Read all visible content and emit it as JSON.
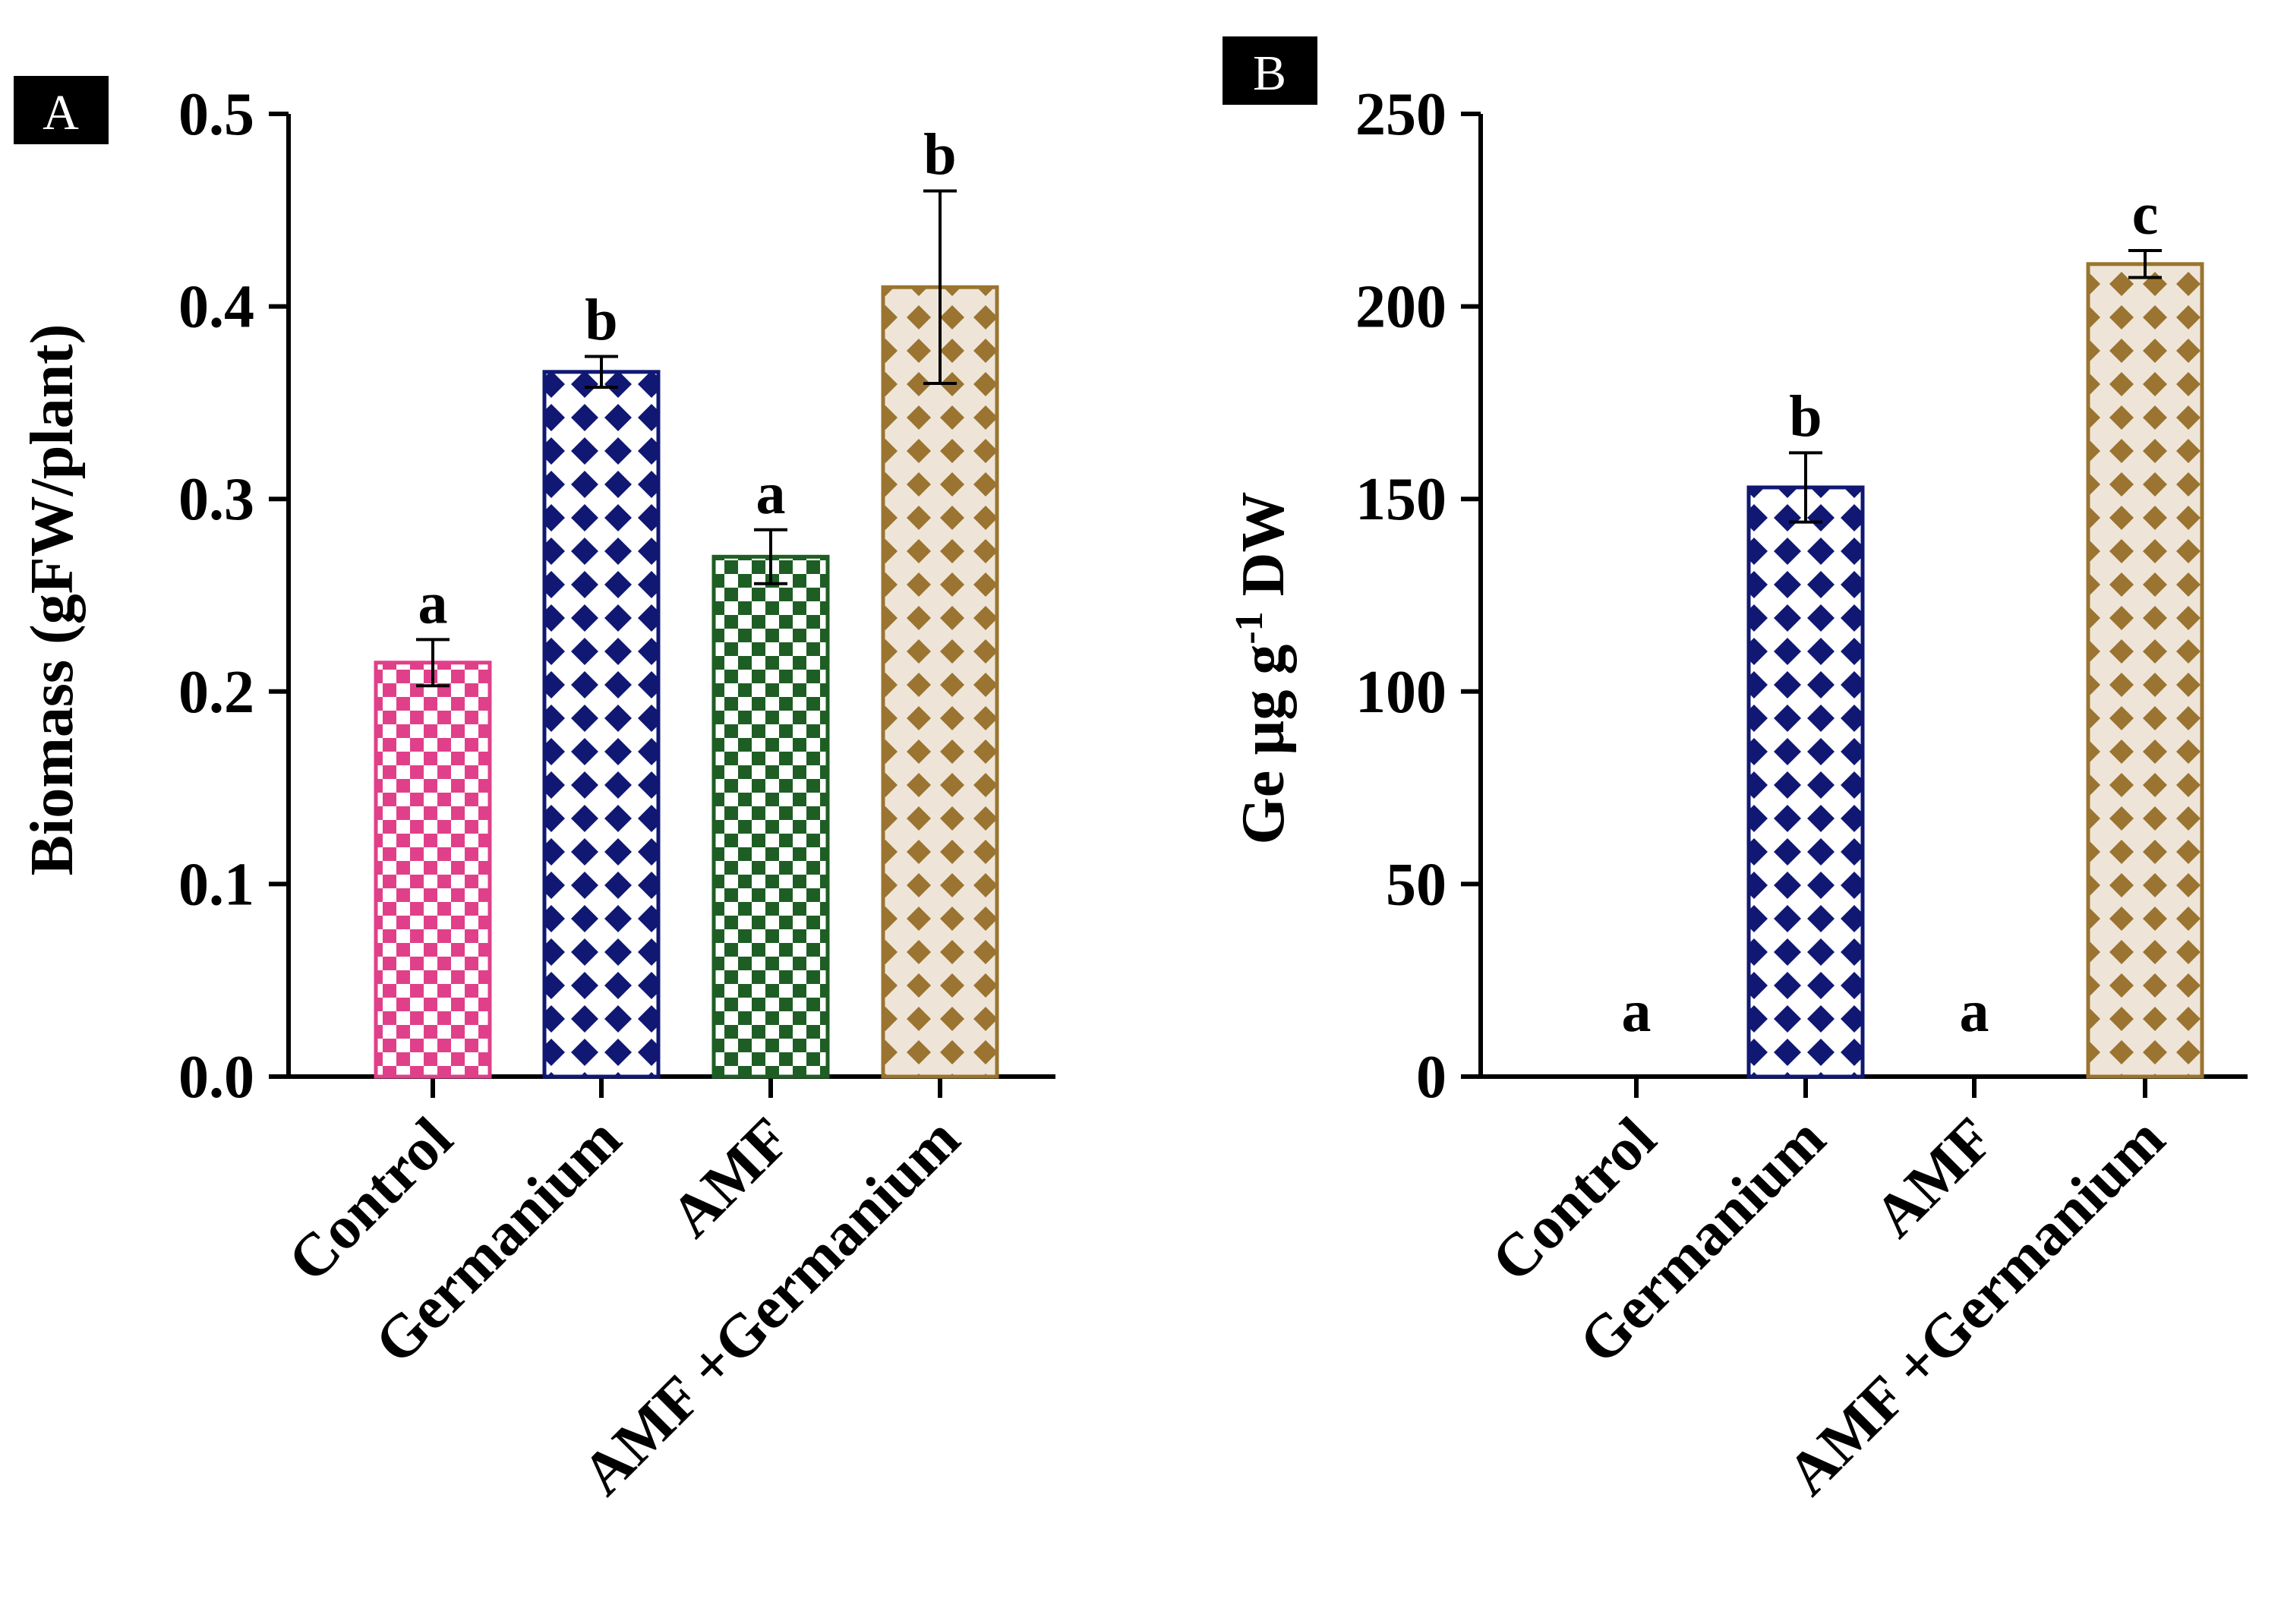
{
  "colors": {
    "control": "#e0408a",
    "germanium": "#101873",
    "amf": "#1e5e24",
    "amf_germanium": "#9a7430",
    "axis": "#000000"
  },
  "chart_data": [
    {
      "panel": "A",
      "type": "bar",
      "categories": [
        "Control",
        "Germanium",
        "AMF",
        "AMF +Germanium"
      ],
      "values": [
        0.215,
        0.366,
        0.27,
        0.41
      ],
      "errors": [
        0.012,
        0.008,
        0.014,
        0.05
      ],
      "significance": [
        "a",
        "b",
        "a",
        "b"
      ],
      "ylabel": "Biomass (gFW/plant)",
      "ylim": [
        0,
        0.5
      ],
      "yticks": [
        "0.0",
        "0.1",
        "0.2",
        "0.3",
        "0.4",
        "0.5"
      ],
      "ytick_values": [
        0,
        0.1,
        0.2,
        0.3,
        0.4,
        0.5
      ],
      "patterns": [
        "checker",
        "diamond",
        "checker",
        "diamond"
      ],
      "color_keys": [
        "control",
        "germanium",
        "amf",
        "amf_germanium"
      ]
    },
    {
      "panel": "B",
      "type": "bar",
      "categories": [
        "Control",
        "Germanium",
        "AMF",
        "AMF +Germanium"
      ],
      "values": [
        0,
        153,
        0,
        211
      ],
      "errors": [
        0,
        9,
        0,
        3.5
      ],
      "significance": [
        "a",
        "b",
        "a",
        "c"
      ],
      "ylabel_main": "Ge  µg g",
      "ylabel_sup": "-1",
      "ylabel_tail": " DW",
      "ylim": [
        0,
        250
      ],
      "yticks": [
        "0",
        "50",
        "100",
        "150",
        "200",
        "250"
      ],
      "ytick_values": [
        0,
        50,
        100,
        150,
        200,
        250
      ],
      "patterns": [
        "checker",
        "diamond",
        "checker",
        "diamond"
      ],
      "color_keys": [
        "control",
        "germanium",
        "amf",
        "amf_germanium"
      ]
    }
  ]
}
